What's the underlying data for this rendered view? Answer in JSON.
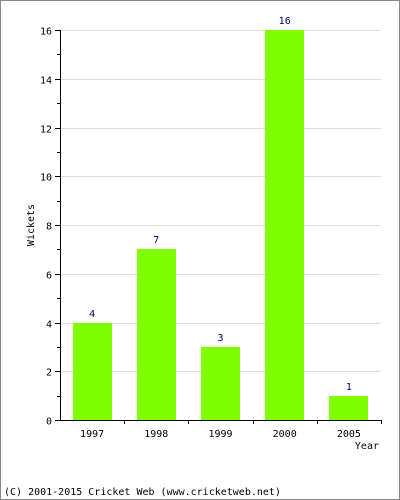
{
  "chart_data": {
    "type": "bar",
    "categories": [
      "1997",
      "1998",
      "1999",
      "2000",
      "2005"
    ],
    "values": [
      4,
      7,
      3,
      16,
      1
    ],
    "title": "",
    "xlabel": "Year",
    "ylabel": "Wickets",
    "ylim": [
      0,
      16
    ],
    "yticks": [
      0,
      2,
      4,
      6,
      8,
      10,
      12,
      14,
      16
    ],
    "grid": true,
    "bar_color": "#80ff00",
    "grid_color": "#dddddd",
    "data_label_color": "#000066"
  },
  "footer": {
    "copyright": "(C) 2001-2015 Cricket Web (www.cricketweb.net)"
  }
}
